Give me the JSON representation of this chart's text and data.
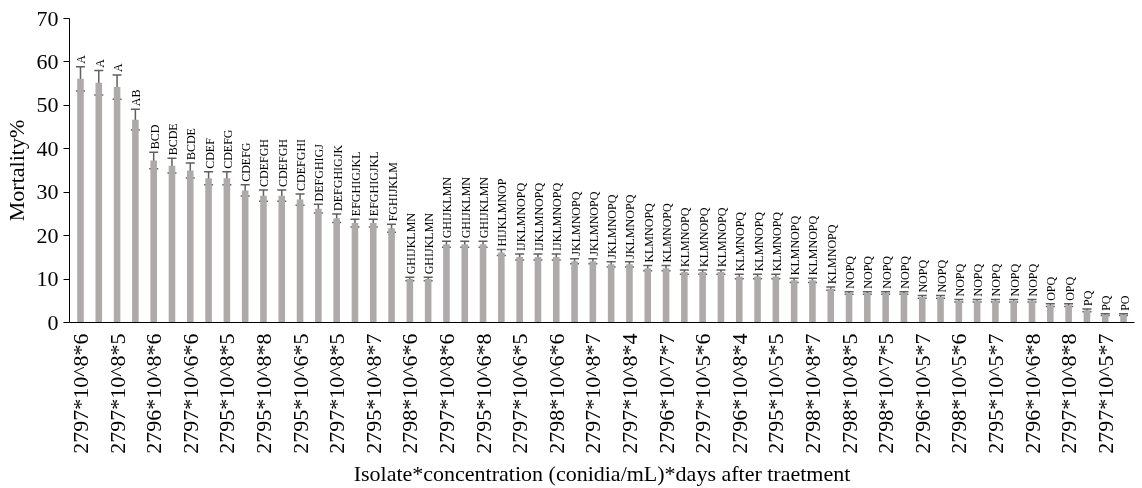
{
  "chart_data": {
    "type": "bar",
    "xlabel": "Isolate*concentration (conidia/mL)*days after traetment",
    "ylabel": "Mortality%",
    "categories": [
      "2797*10^8*6",
      null,
      "2797*10^8*5",
      null,
      "2796*10^8*6",
      null,
      "2797*10^6*6",
      null,
      "2795*10^8*5",
      null,
      "2795*10^8*8",
      null,
      "2795*10^6*5",
      null,
      "2797*10^8*5",
      null,
      "2795*10^8*7",
      null,
      "2798*10^6*6",
      null,
      "2797*10^8*6",
      null,
      "2795*10^6*8",
      null,
      "2797*10^6*5",
      null,
      "2798*10^6*6",
      null,
      "2797*10^8*7",
      null,
      "2797*10^8*4",
      null,
      "2796*10^7*7",
      null,
      "2797*10^5*6",
      null,
      "2796*10^8*4",
      null,
      "2795*10^5*5",
      null,
      "2798*10^8*7",
      null,
      "2798*10^8*5",
      null,
      "2798*10^7*5",
      null,
      "2796*10^5*7",
      null,
      "2798*10^5*6",
      null,
      "2795*10^5*7",
      null,
      "2796*10^6*8",
      null,
      "2797*10^8*8",
      null,
      "2797*10^5*7",
      null
    ],
    "values": [
      56.1,
      55.2,
      54.2,
      46.7,
      37.3,
      36.1,
      35.0,
      33.2,
      33.2,
      30.4,
      29.2,
      29.2,
      28.3,
      26.2,
      24.0,
      22.9,
      22.9,
      21.7,
      10.0,
      10.0,
      18.0,
      18.0,
      18.0,
      16.1,
      15.1,
      15.1,
      15.1,
      14.1,
      14.1,
      13.4,
      13.4,
      12.5,
      12.5,
      11.6,
      11.6,
      11.6,
      10.6,
      10.6,
      10.6,
      9.7,
      9.7,
      7.8,
      6.8,
      6.8,
      6.8,
      6.8,
      5.9,
      5.9,
      5.0,
      5.0,
      5.0,
      5.0,
      5.0,
      4.0,
      4.0,
      2.8,
      1.8,
      1.8
    ],
    "errors": [
      2.8,
      2.8,
      2.8,
      2.4,
      1.9,
      1.7,
      1.7,
      1.5,
      1.5,
      1.3,
      1.3,
      1.3,
      1.3,
      1.0,
      1.0,
      0.9,
      0.9,
      0.9,
      0.4,
      0.4,
      0.7,
      0.7,
      0.7,
      0.7,
      0.7,
      0.7,
      0.7,
      0.6,
      0.6,
      0.6,
      0.6,
      0.6,
      0.6,
      0.5,
      0.5,
      0.5,
      0.5,
      0.5,
      0.5,
      0.5,
      0.5,
      0.4,
      0.3,
      0.3,
      0.3,
      0.3,
      0.3,
      0.3,
      0.3,
      0.3,
      0.3,
      0.3,
      0.3,
      0.3,
      0.3,
      0.3,
      0.2,
      0.2
    ],
    "value_labels": [
      "A",
      "A",
      "A",
      "AB",
      "BCD",
      "BCDE",
      "BCDE",
      "CDEF",
      "CDEFG",
      "CDEFG",
      "CDEFGH",
      "CDEFGH",
      "CDEFGHI",
      "DEFGHIGJ",
      "DEFGHIGJK",
      "EFGHIGJKL",
      "EFGHIGJKL",
      "FGHIJKLM",
      "GHIJKLMN",
      "GHIJKLMN",
      "GHIJKLMN",
      "GHIJKLMN",
      "GHIJKLMN",
      "HIJKLMNOP",
      "IJKLMNOPQ",
      "IJKLMNOPQ",
      "IJKLMNOPQ",
      "JKLMNOPQ",
      "JKLMNOPQ",
      "JKLMNOPQ",
      "JKLMNOPQ",
      "KLMNOPQ",
      "KLMNOPQ",
      "KLMNOPQ",
      "KLMNOPQ",
      "KLMNOPQ",
      "KLMNOPQ",
      "KLMNOPQ",
      "KLMNOPQ",
      "KLMNOPQ",
      "KLMNOPQ",
      "KLMNOPQ",
      "NOPQ",
      "NOPQ",
      "NOPQ",
      "NOPQ",
      "NOPQ",
      "NOPQ",
      "NOPQ",
      "NOPQ",
      "NOPQ",
      "NOPQ",
      "NOPQ",
      "OPQ",
      "OPQ",
      "PQ",
      "PQ",
      "PO"
    ],
    "color": "#aeaaaa",
    "ylim": [
      0,
      70
    ],
    "yticks": [
      0,
      10,
      20,
      30,
      40,
      50,
      60,
      70
    ],
    "grid": false
  }
}
